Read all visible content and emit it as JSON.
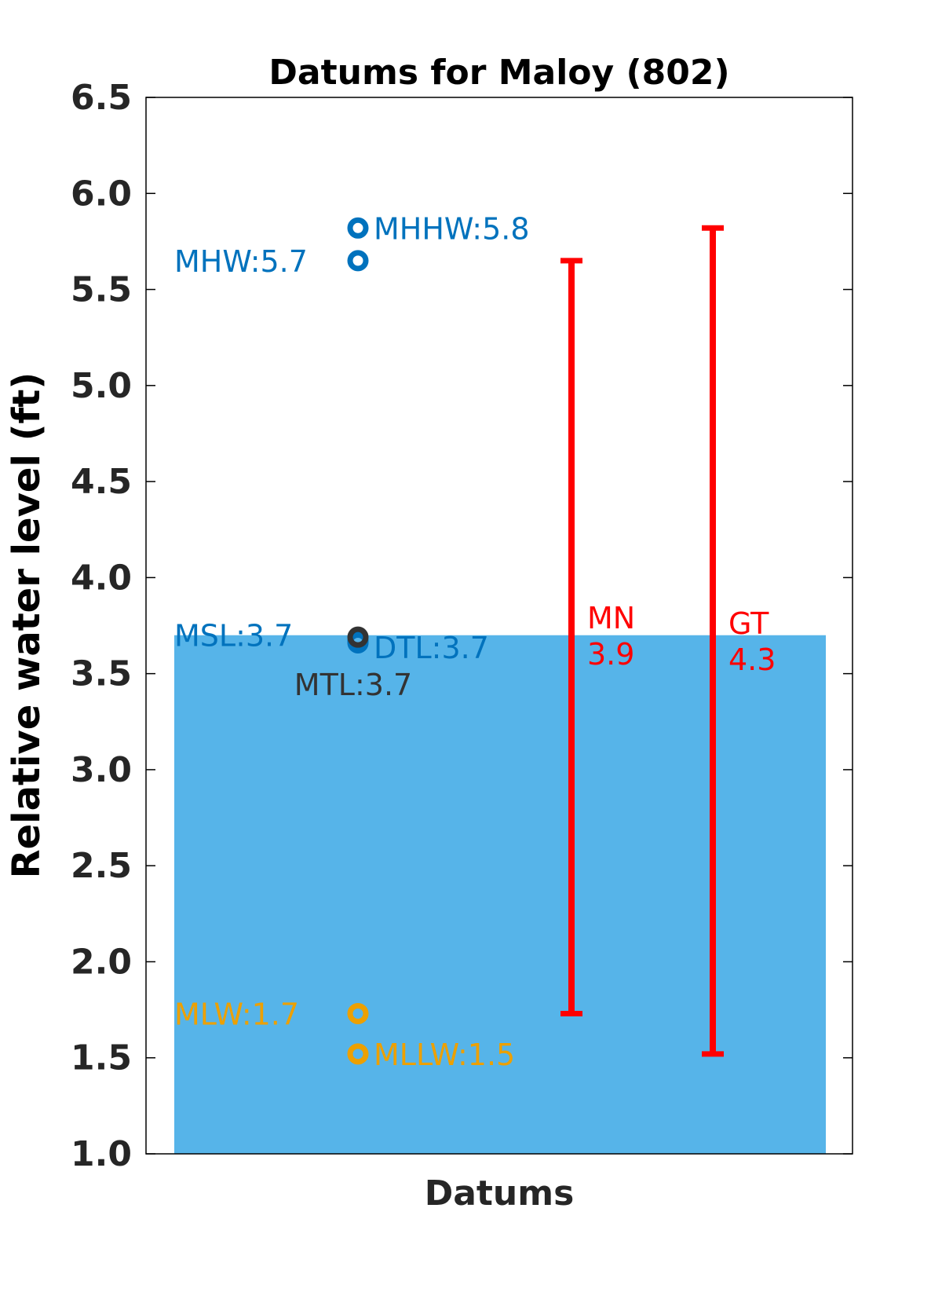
{
  "chart_data": {
    "type": "datum-plot",
    "title": "Datums for Maloy (802)",
    "xlabel": "Datums",
    "ylabel": "Relative water level (ft)",
    "ylim": [
      1.0,
      6.5
    ],
    "y_ticks": [
      "1.0",
      "1.5",
      "2.0",
      "2.5",
      "3.0",
      "3.5",
      "4.0",
      "4.5",
      "5.0",
      "5.5",
      "6.0",
      "6.5"
    ],
    "grid": false,
    "colors": {
      "high": "#0072BD",
      "mid": "#333333",
      "low": "#EDA000",
      "range": "#FF0000",
      "fill": "#56B4E9"
    },
    "fill_level": 3.7,
    "points": [
      {
        "name": "MHHW",
        "value": 5.82,
        "label": "MHHW:5.8",
        "group": "high",
        "label_side": "right"
      },
      {
        "name": "MHW",
        "value": 5.65,
        "label": "MHW:5.7",
        "group": "high",
        "label_side": "left"
      },
      {
        "name": "MSL",
        "value": 3.66,
        "label": "MSL:3.7",
        "group": "high",
        "label_side": "left"
      },
      {
        "name": "DTL",
        "value": 3.67,
        "label": "DTL:3.7",
        "group": "high",
        "label_side": "right"
      },
      {
        "name": "MTL",
        "value": 3.69,
        "label": "MTL:3.7",
        "group": "mid",
        "label_side": "below"
      },
      {
        "name": "MLW",
        "value": 1.73,
        "label": "MLW:1.7",
        "group": "low",
        "label_side": "left"
      },
      {
        "name": "MLLW",
        "value": 1.52,
        "label": "MLLW:1.5",
        "group": "low",
        "label_side": "right"
      }
    ],
    "ranges": [
      {
        "name": "MN",
        "value_text": "3.9",
        "low": 1.73,
        "high": 5.65
      },
      {
        "name": "GT",
        "value_text": "4.3",
        "low": 1.52,
        "high": 5.82
      }
    ]
  }
}
